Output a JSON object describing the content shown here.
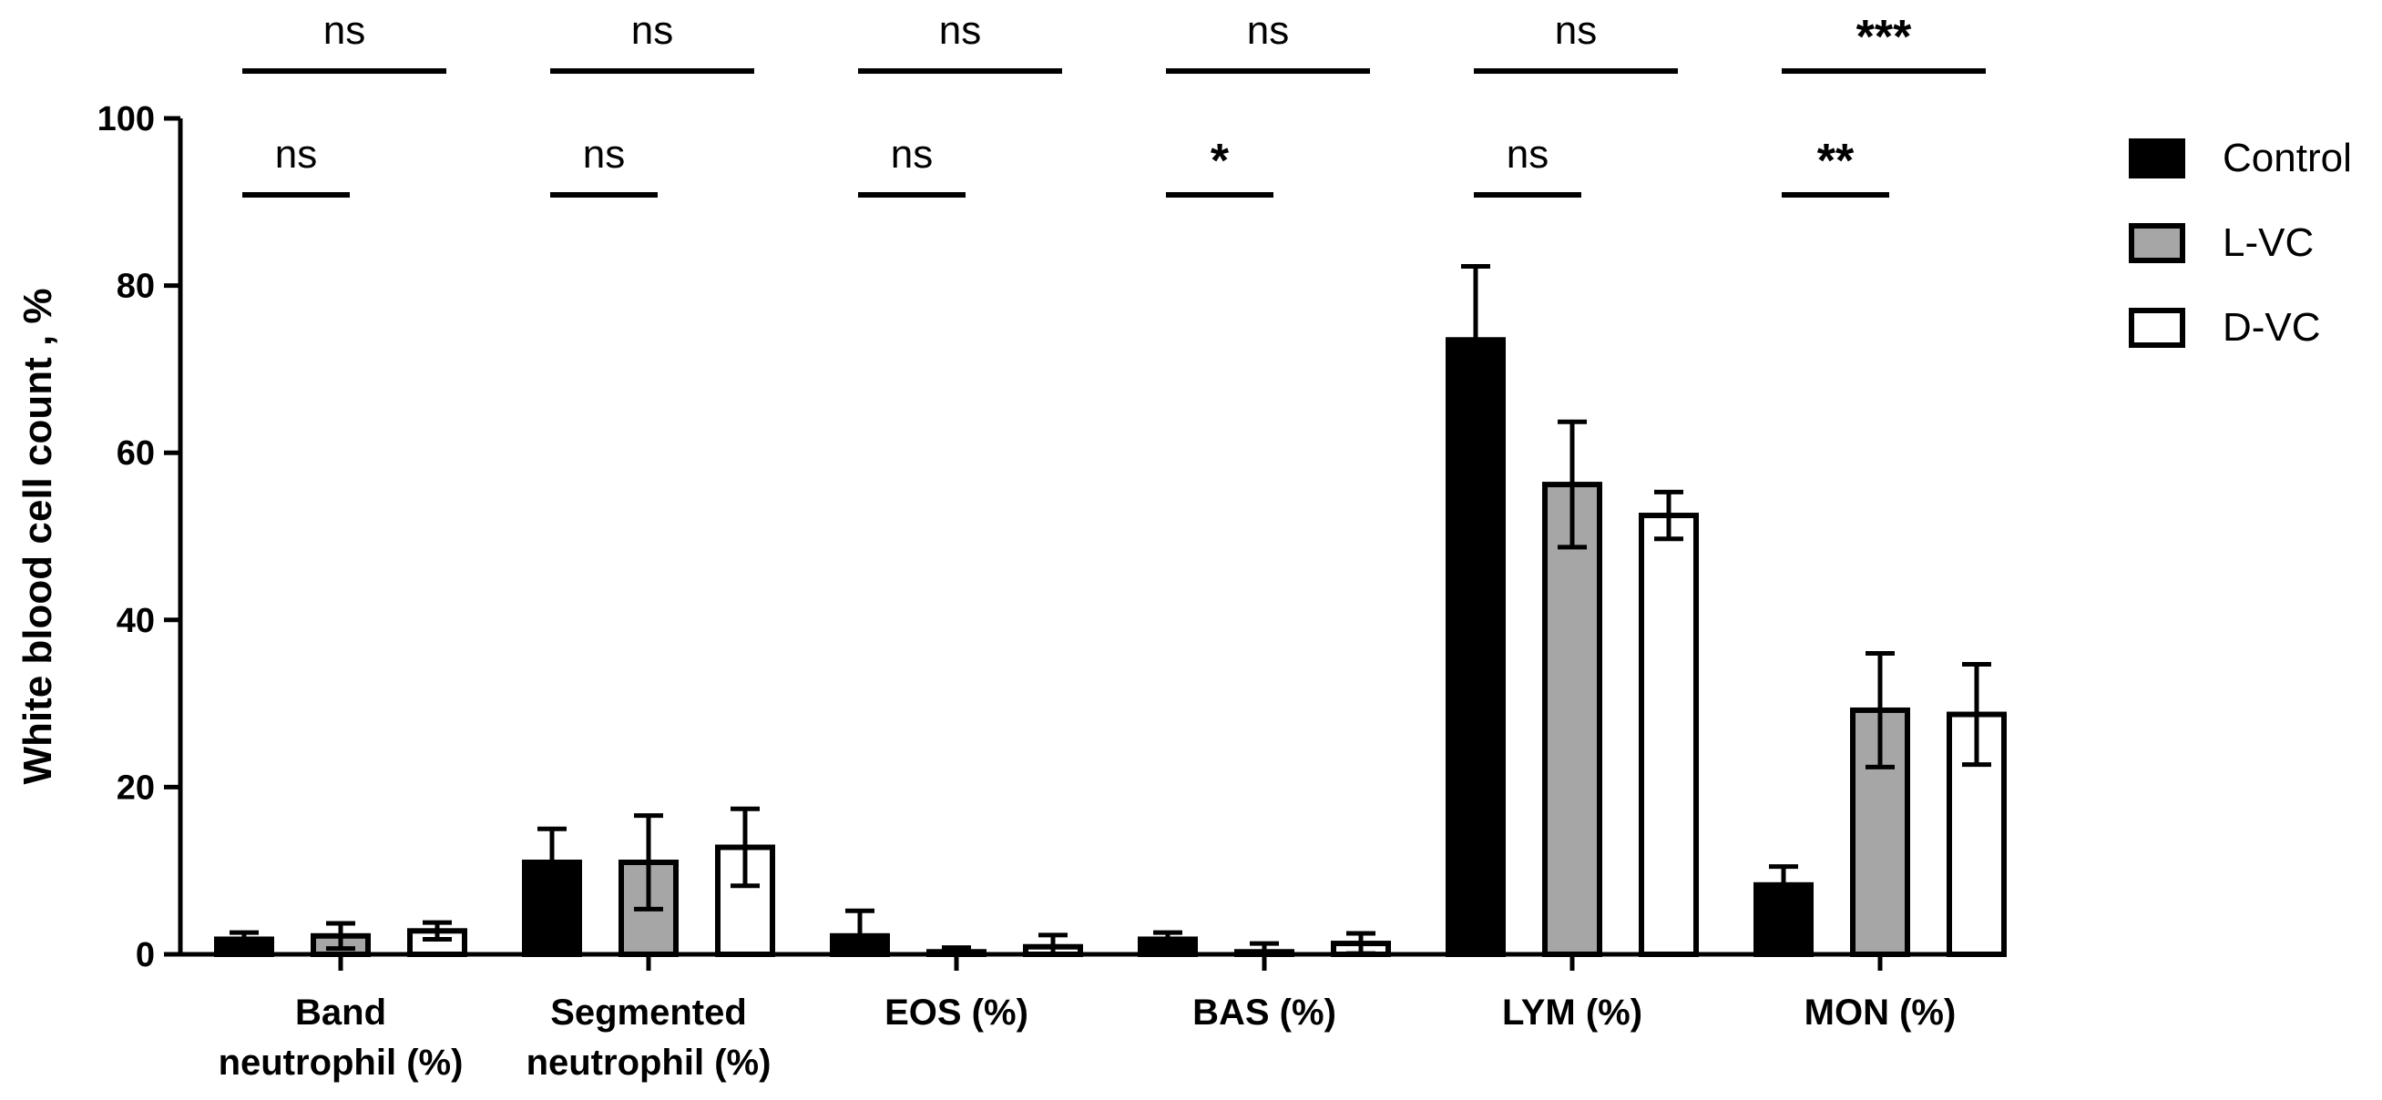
{
  "chart_data": {
    "type": "bar",
    "ylabel": "White blood cell count , %",
    "ylim": [
      0,
      100
    ],
    "yticks": [
      0,
      20,
      40,
      60,
      80,
      100
    ],
    "categories": [
      [
        "Band",
        "neutrophil (%)"
      ],
      [
        "Segmented",
        "neutrophil (%)"
      ],
      [
        "EOS (%)"
      ],
      [
        "BAS (%)"
      ],
      [
        "LYM (%)"
      ],
      [
        "MON (%)"
      ]
    ],
    "series": [
      {
        "name": "Control",
        "color": "#000000",
        "values": [
          1.8,
          11.0,
          2.2,
          1.8,
          73.5,
          8.3
        ],
        "errors": [
          0.8,
          4.0,
          3.0,
          0.8,
          8.8,
          2.2
        ]
      },
      {
        "name": "L-VC",
        "color": "#a6a6a6",
        "values": [
          2.2,
          11.0,
          0.3,
          0.3,
          56.2,
          29.2
        ],
        "errors": [
          1.5,
          5.6,
          0.5,
          1.0,
          7.5,
          6.8
        ]
      },
      {
        "name": "D-VC",
        "color": "#ffffff",
        "values": [
          2.8,
          12.8,
          0.9,
          1.3,
          52.5,
          28.7
        ],
        "errors": [
          1.0,
          4.6,
          1.4,
          1.2,
          2.8,
          6.0
        ]
      }
    ],
    "legend_position": "right",
    "annotations": {
      "control_vs_dvc": [
        "ns",
        "ns",
        "ns",
        "ns",
        "ns",
        "***"
      ],
      "control_vs_lvc": [
        "ns",
        "ns",
        "ns",
        "*",
        "ns",
        "**"
      ]
    }
  }
}
